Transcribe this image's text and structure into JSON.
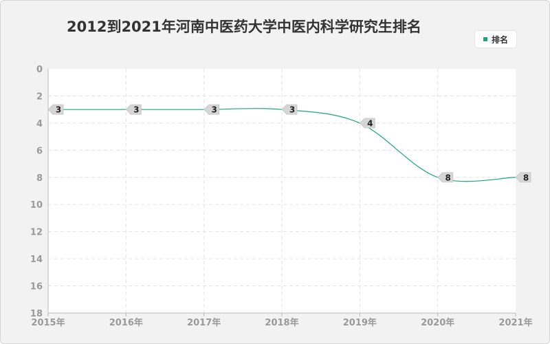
{
  "chart_data": {
    "type": "line",
    "title": "2012到2021年河南中医药大学中医内科学研究生排名",
    "categories": [
      "2015年",
      "2016年",
      "2017年",
      "2018年",
      "2019年",
      "2020年",
      "2021年"
    ],
    "series": [
      {
        "name": "排名",
        "values": [
          3,
          3,
          3,
          3,
          4,
          8,
          8
        ],
        "color": "#19a874"
      }
    ],
    "ylim": [
      0,
      18
    ],
    "yticks": [
      0,
      2,
      4,
      6,
      8,
      10,
      12,
      14,
      16,
      18
    ],
    "y_inverted": true,
    "grid": true,
    "legend_position": "top-right"
  }
}
